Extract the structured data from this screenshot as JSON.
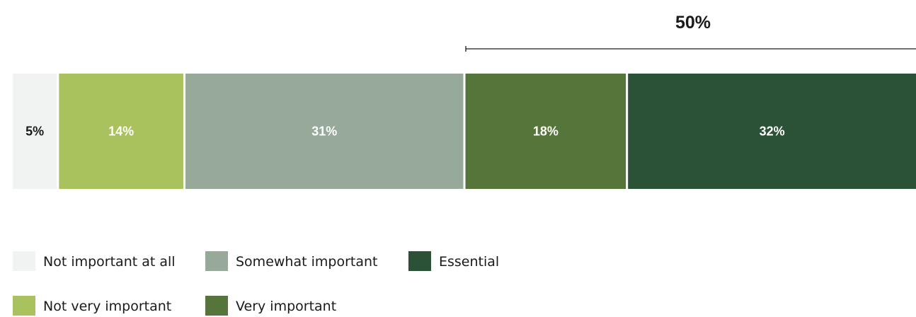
{
  "chart_data": {
    "type": "bar",
    "orientation": "horizontal-stacked",
    "categories": [
      "Not important at all",
      "Not very important",
      "Somewhat important",
      "Very important",
      "Essential"
    ],
    "values": [
      5,
      14,
      31,
      18,
      32
    ],
    "labels": [
      "5%",
      "14%",
      "31%",
      "18%",
      "32%"
    ],
    "colors": [
      "#f1f3f2",
      "#a9c25e",
      "#97a998",
      "#55753a",
      "#2b5236"
    ],
    "label_colors": [
      "#1a1a1a",
      "#ffffff",
      "#ffffff",
      "#ffffff",
      "#ffffff"
    ],
    "bracket": {
      "label": "50%",
      "covers": [
        "Very important",
        "Essential"
      ]
    },
    "legend": [
      {
        "label": "Not important at all",
        "color": "#f1f3f2"
      },
      {
        "label": "Somewhat important",
        "color": "#97a998"
      },
      {
        "label": "Essential",
        "color": "#2b5236"
      },
      {
        "label": "Not very important",
        "color": "#a9c25e"
      },
      {
        "label": "Very important",
        "color": "#55753a"
      }
    ],
    "legend_position": "bottom-left",
    "grid": false
  }
}
